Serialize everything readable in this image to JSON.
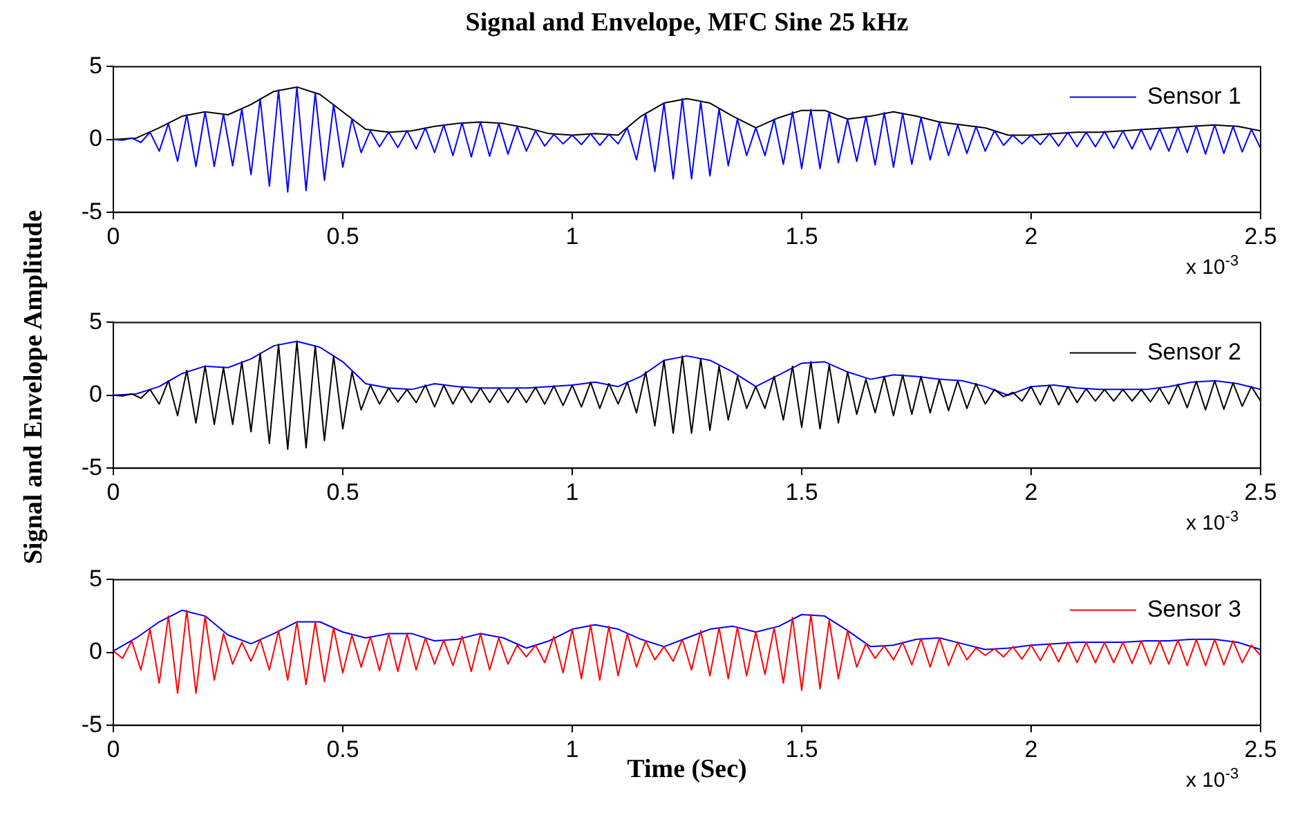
{
  "chart_data": [
    {
      "type": "line",
      "title": "Signal and Envelope, MFC Sine 25 kHz",
      "xlim": [
        0,
        2.5
      ],
      "xticks": [
        0,
        0.5,
        1,
        1.5,
        2,
        2.5
      ],
      "ylim": [
        -5,
        5
      ],
      "yticks": [
        -5,
        0,
        5
      ],
      "grid": false,
      "legend": "top right",
      "marker": "none",
      "annotations": [
        "x 10$^{-3}$"
      ],
      "x": [
        0,
        0.02,
        0.04,
        0.06,
        0.08,
        0.1,
        0.12,
        0.14,
        0.16,
        0.18,
        0.2,
        0.22,
        0.24,
        0.26,
        0.28,
        0.3,
        0.32,
        0.34,
        0.36,
        0.38,
        0.4,
        0.42,
        0.44,
        0.46,
        0.48,
        0.5,
        0.52,
        0.54,
        0.56,
        0.58,
        0.6,
        0.62,
        0.64,
        0.66,
        0.68,
        0.7,
        0.72,
        0.74,
        0.76,
        0.78,
        0.8,
        0.82,
        0.84,
        0.86,
        0.88,
        0.9,
        0.92,
        0.94,
        0.96,
        0.98,
        1,
        1.02,
        1.04,
        1.06,
        1.08,
        1.1,
        1.12,
        1.14,
        1.16,
        1.18,
        1.2,
        1.22,
        1.24,
        1.26,
        1.28,
        1.3,
        1.32,
        1.34,
        1.36,
        1.38,
        1.4,
        1.42,
        1.44,
        1.46,
        1.48,
        1.5,
        1.52,
        1.54,
        1.56,
        1.58,
        1.6,
        1.62,
        1.64,
        1.66,
        1.68,
        1.7,
        1.72,
        1.74,
        1.76,
        1.78,
        1.8,
        1.82,
        1.84,
        1.86,
        1.88,
        1.9,
        1.92,
        1.94,
        1.96,
        1.98,
        2,
        2.02,
        2.04,
        2.06,
        2.08,
        2.1,
        2.12,
        2.14,
        2.16,
        2.18,
        2.2,
        2.22,
        2.24,
        2.26,
        2.28,
        2.3,
        2.32,
        2.34,
        2.36,
        2.38,
        2.4,
        2.42,
        2.44,
        2.46,
        2.48,
        2.5
      ],
      "series": [
        {
          "name": "Sensor 1",
          "color": "#0000ff",
          "values": [
            0,
            -0.05,
            0.1,
            -0.2,
            0.5,
            -0.8,
            1.1,
            -1.5,
            1.7,
            -1.85,
            1.9,
            -1.85,
            1.75,
            -1.8,
            2.1,
            -2.4,
            2.8,
            -3.2,
            3.4,
            -3.6,
            3.6,
            -3.5,
            3.2,
            -2.8,
            2.4,
            -1.9,
            1.4,
            -0.9,
            0.6,
            -0.5,
            0.5,
            -0.55,
            0.6,
            -0.65,
            0.8,
            -0.9,
            1,
            -1.1,
            1.15,
            -1.2,
            1.2,
            -1.15,
            1.1,
            -1,
            0.9,
            -0.8,
            0.6,
            -0.45,
            0.35,
            -0.3,
            0.3,
            -0.35,
            0.4,
            -0.4,
            0.35,
            -0.3,
            0.8,
            -1.4,
            1.8,
            -2.2,
            2.5,
            -2.7,
            2.8,
            -2.7,
            2.6,
            -2.5,
            2.1,
            -1.8,
            1.4,
            -1.1,
            0.8,
            -1.1,
            1.4,
            -1.7,
            1.9,
            -2,
            2.05,
            -2,
            1.9,
            -1.6,
            1.4,
            -1.5,
            1.6,
            -1.75,
            1.85,
            -1.9,
            1.8,
            -1.7,
            1.5,
            -1.4,
            1.2,
            -1.1,
            1,
            -0.95,
            0.9,
            -0.8,
            0.6,
            -0.4,
            0.3,
            -0.3,
            0.3,
            -0.35,
            0.4,
            -0.45,
            0.5,
            -0.5,
            0.5,
            -0.5,
            0.55,
            -0.6,
            0.6,
            -0.65,
            0.7,
            -0.7,
            0.75,
            -0.8,
            0.85,
            -0.9,
            0.95,
            -1,
            1,
            -0.95,
            0.9,
            -0.85,
            0.7,
            -0.6
          ]
        },
        {
          "color": "#000000",
          "x": [
            0,
            0.05,
            0.1,
            0.15,
            0.2,
            0.25,
            0.3,
            0.35,
            0.4,
            0.45,
            0.5,
            0.55,
            0.6,
            0.65,
            0.7,
            0.75,
            0.8,
            0.85,
            0.9,
            0.95,
            1,
            1.05,
            1.1,
            1.15,
            1.2,
            1.25,
            1.3,
            1.35,
            1.4,
            1.45,
            1.5,
            1.55,
            1.6,
            1.65,
            1.7,
            1.75,
            1.8,
            1.85,
            1.9,
            1.95,
            2,
            2.05,
            2.1,
            2.15,
            2.2,
            2.25,
            2.3,
            2.35,
            2.4,
            2.45,
            2.5
          ],
          "values": [
            0,
            0.1,
            0.8,
            1.6,
            1.9,
            1.7,
            2.4,
            3.3,
            3.6,
            3.1,
            1.9,
            0.7,
            0.5,
            0.6,
            0.9,
            1.1,
            1.2,
            1.1,
            0.8,
            0.4,
            0.3,
            0.4,
            0.3,
            1.6,
            2.5,
            2.8,
            2.5,
            1.6,
            0.8,
            1.5,
            2,
            2,
            1.4,
            1.6,
            1.9,
            1.6,
            1.2,
            1,
            0.8,
            0.3,
            0.3,
            0.4,
            0.5,
            0.5,
            0.6,
            0.7,
            0.8,
            0.9,
            1,
            0.9,
            0.6
          ]
        }
      ]
    },
    {
      "type": "line",
      "ylabel": "Signal and Envelope Amplitude",
      "xlim": [
        0,
        2.5
      ],
      "xticks": [
        0,
        0.5,
        1,
        1.5,
        2,
        2.5
      ],
      "ylim": [
        -5,
        5
      ],
      "yticks": [
        -5,
        0,
        5
      ],
      "grid": false,
      "legend": "top right",
      "marker": "none",
      "annotations": [
        "x 10$^{-3}$"
      ],
      "x": [
        0,
        0.02,
        0.04,
        0.06,
        0.08,
        0.1,
        0.12,
        0.14,
        0.16,
        0.18,
        0.2,
        0.22,
        0.24,
        0.26,
        0.28,
        0.3,
        0.32,
        0.34,
        0.36,
        0.38,
        0.4,
        0.42,
        0.44,
        0.46,
        0.48,
        0.5,
        0.52,
        0.54,
        0.56,
        0.58,
        0.6,
        0.62,
        0.64,
        0.66,
        0.68,
        0.7,
        0.72,
        0.74,
        0.76,
        0.78,
        0.8,
        0.82,
        0.84,
        0.86,
        0.88,
        0.9,
        0.92,
        0.94,
        0.96,
        0.98,
        1,
        1.02,
        1.04,
        1.06,
        1.08,
        1.1,
        1.12,
        1.14,
        1.16,
        1.18,
        1.2,
        1.22,
        1.24,
        1.26,
        1.28,
        1.3,
        1.32,
        1.34,
        1.36,
        1.38,
        1.4,
        1.42,
        1.44,
        1.46,
        1.48,
        1.5,
        1.52,
        1.54,
        1.56,
        1.58,
        1.6,
        1.62,
        1.64,
        1.66,
        1.68,
        1.7,
        1.72,
        1.74,
        1.76,
        1.78,
        1.8,
        1.82,
        1.84,
        1.86,
        1.88,
        1.9,
        1.92,
        1.94,
        1.96,
        1.98,
        2,
        2.02,
        2.04,
        2.06,
        2.08,
        2.1,
        2.12,
        2.14,
        2.16,
        2.18,
        2.2,
        2.22,
        2.24,
        2.26,
        2.28,
        2.3,
        2.32,
        2.34,
        2.36,
        2.38,
        2.4,
        2.42,
        2.44,
        2.46,
        2.48,
        2.5
      ],
      "series": [
        {
          "name": "Sensor 2",
          "color": "#000000",
          "values": [
            0,
            -0.05,
            0.1,
            -0.2,
            0.4,
            -0.6,
            1,
            -1.4,
            1.7,
            -1.9,
            2,
            -2,
            1.9,
            -2,
            2.3,
            -2.5,
            2.9,
            -3.3,
            3.5,
            -3.7,
            3.7,
            -3.6,
            3.4,
            -3.1,
            2.7,
            -2.3,
            1.6,
            -1,
            0.7,
            -0.6,
            0.5,
            -0.45,
            0.4,
            -0.5,
            0.7,
            -0.8,
            0.7,
            -0.6,
            0.55,
            -0.5,
            0.5,
            -0.5,
            0.5,
            -0.5,
            0.5,
            -0.5,
            0.55,
            -0.6,
            0.65,
            -0.7,
            0.7,
            -0.8,
            0.9,
            -0.9,
            0.8,
            -0.6,
            0.9,
            -1.2,
            1.6,
            -2.1,
            2.4,
            -2.6,
            2.7,
            -2.6,
            2.5,
            -2.4,
            2,
            -1.7,
            1.3,
            -0.9,
            0.6,
            -0.9,
            1.3,
            -1.7,
            2,
            -2.2,
            2.3,
            -2.3,
            2.1,
            -1.9,
            1.6,
            -1.3,
            1.1,
            -1.2,
            1.3,
            -1.4,
            1.4,
            -1.3,
            1.3,
            -1.2,
            1.1,
            -1.05,
            1,
            -0.9,
            0.8,
            -0.6,
            0.4,
            -0.1,
            0.2,
            -0.4,
            0.6,
            -0.65,
            0.7,
            -0.65,
            0.6,
            -0.5,
            0.45,
            -0.4,
            0.4,
            -0.4,
            0.4,
            -0.4,
            0.4,
            -0.45,
            0.5,
            -0.6,
            0.75,
            -0.85,
            0.95,
            -1,
            1,
            -0.95,
            0.85,
            -0.75,
            0.6,
            -0.4
          ]
        },
        {
          "color": "#0000ff",
          "x": [
            0,
            0.05,
            0.1,
            0.15,
            0.2,
            0.25,
            0.3,
            0.35,
            0.4,
            0.45,
            0.5,
            0.55,
            0.6,
            0.65,
            0.7,
            0.75,
            0.8,
            0.85,
            0.9,
            0.95,
            1,
            1.05,
            1.1,
            1.15,
            1.2,
            1.25,
            1.3,
            1.35,
            1.4,
            1.45,
            1.5,
            1.55,
            1.6,
            1.65,
            1.7,
            1.75,
            1.8,
            1.85,
            1.9,
            1.95,
            2,
            2.05,
            2.1,
            2.15,
            2.2,
            2.25,
            2.3,
            2.35,
            2.4,
            2.45,
            2.5
          ],
          "values": [
            0,
            0.1,
            0.6,
            1.5,
            2,
            1.9,
            2.5,
            3.4,
            3.7,
            3.3,
            2.3,
            0.8,
            0.5,
            0.4,
            0.8,
            0.6,
            0.5,
            0.5,
            0.5,
            0.6,
            0.7,
            0.9,
            0.6,
            1.3,
            2.4,
            2.7,
            2.4,
            1.6,
            0.6,
            1.4,
            2.2,
            2.3,
            1.6,
            1.1,
            1.4,
            1.3,
            1.1,
            1,
            0.6,
            0,
            0.6,
            0.7,
            0.5,
            0.4,
            0.4,
            0.4,
            0.6,
            0.9,
            1,
            0.8,
            0.4
          ]
        }
      ]
    },
    {
      "type": "line",
      "xlabel": "Time (Sec)",
      "xlim": [
        0,
        2.5
      ],
      "xticks": [
        0,
        0.5,
        1,
        1.5,
        2,
        2.5
      ],
      "ylim": [
        -5,
        5
      ],
      "yticks": [
        -5,
        0,
        5
      ],
      "grid": false,
      "legend": "top right",
      "marker": "none",
      "annotations": [
        "x 10$^{-3}$"
      ],
      "x": [
        0,
        0.02,
        0.04,
        0.06,
        0.08,
        0.1,
        0.12,
        0.14,
        0.16,
        0.18,
        0.2,
        0.22,
        0.24,
        0.26,
        0.28,
        0.3,
        0.32,
        0.34,
        0.36,
        0.38,
        0.4,
        0.42,
        0.44,
        0.46,
        0.48,
        0.5,
        0.52,
        0.54,
        0.56,
        0.58,
        0.6,
        0.62,
        0.64,
        0.66,
        0.68,
        0.7,
        0.72,
        0.74,
        0.76,
        0.78,
        0.8,
        0.82,
        0.84,
        0.86,
        0.88,
        0.9,
        0.92,
        0.94,
        0.96,
        0.98,
        1,
        1.02,
        1.04,
        1.06,
        1.08,
        1.1,
        1.12,
        1.14,
        1.16,
        1.18,
        1.2,
        1.22,
        1.24,
        1.26,
        1.28,
        1.3,
        1.32,
        1.34,
        1.36,
        1.38,
        1.4,
        1.42,
        1.44,
        1.46,
        1.48,
        1.5,
        1.52,
        1.54,
        1.56,
        1.58,
        1.6,
        1.62,
        1.64,
        1.66,
        1.68,
        1.7,
        1.72,
        1.74,
        1.76,
        1.78,
        1.8,
        1.82,
        1.84,
        1.86,
        1.88,
        1.9,
        1.92,
        1.94,
        1.96,
        1.98,
        2,
        2.02,
        2.04,
        2.06,
        2.08,
        2.1,
        2.12,
        2.14,
        2.16,
        2.18,
        2.2,
        2.22,
        2.24,
        2.26,
        2.28,
        2.3,
        2.32,
        2.34,
        2.36,
        2.38,
        2.4,
        2.42,
        2.44,
        2.46,
        2.48,
        2.5
      ],
      "series": [
        {
          "name": "Sensor 3",
          "color": "#ff0000",
          "values": [
            0.1,
            -0.4,
            0.8,
            -1.2,
            1.6,
            -2.1,
            2.5,
            -2.8,
            2.9,
            -2.8,
            2.5,
            -1.9,
            1.3,
            -0.8,
            0.7,
            -0.6,
            0.9,
            -1.2,
            1.5,
            -1.9,
            2.1,
            -2.2,
            2.1,
            -2,
            1.7,
            -1.4,
            1.2,
            -1,
            1.1,
            -1.25,
            1.3,
            -1.3,
            1.3,
            -1.2,
            1,
            -0.8,
            0.85,
            -0.9,
            1.1,
            -1.3,
            1.3,
            -1.2,
            1,
            -0.8,
            0.5,
            -0.3,
            0.5,
            -0.7,
            1.1,
            -1.4,
            1.6,
            -1.8,
            1.9,
            -1.9,
            1.8,
            -1.6,
            1.3,
            -1,
            0.8,
            -0.5,
            0.4,
            -0.6,
            0.9,
            -1.2,
            1.5,
            -1.6,
            1.7,
            -1.8,
            1.75,
            -1.6,
            1.4,
            -1.5,
            1.7,
            -2.1,
            2.4,
            -2.6,
            2.6,
            -2.5,
            2.2,
            -1.8,
            1.5,
            -1,
            0.6,
            -0.4,
            0.45,
            -0.5,
            0.7,
            -0.85,
            0.95,
            -1,
            1,
            -0.9,
            0.7,
            -0.5,
            0.3,
            -0.2,
            0.25,
            -0.3,
            0.4,
            -0.45,
            0.5,
            -0.55,
            0.6,
            -0.65,
            0.7,
            -0.7,
            0.7,
            -0.7,
            0.7,
            -0.7,
            0.7,
            -0.75,
            0.8,
            -0.8,
            0.8,
            -0.8,
            0.85,
            -0.9,
            0.9,
            -0.9,
            0.9,
            -0.85,
            0.8,
            -0.7,
            0.5,
            -0.2
          ]
        },
        {
          "color": "#0000ff",
          "x": [
            0,
            0.05,
            0.1,
            0.15,
            0.2,
            0.25,
            0.3,
            0.35,
            0.4,
            0.45,
            0.5,
            0.55,
            0.6,
            0.65,
            0.7,
            0.75,
            0.8,
            0.85,
            0.9,
            0.95,
            1,
            1.05,
            1.1,
            1.15,
            1.2,
            1.25,
            1.3,
            1.35,
            1.4,
            1.45,
            1.5,
            1.55,
            1.6,
            1.65,
            1.7,
            1.75,
            1.8,
            1.85,
            1.9,
            1.95,
            2,
            2.05,
            2.1,
            2.15,
            2.2,
            2.25,
            2.3,
            2.35,
            2.4,
            2.45,
            2.5
          ],
          "values": [
            0.1,
            1,
            2.1,
            2.9,
            2.5,
            1.2,
            0.6,
            1.3,
            2.1,
            2.1,
            1.4,
            1,
            1.3,
            1.3,
            0.8,
            0.9,
            1.3,
            1,
            0.3,
            0.8,
            1.6,
            1.9,
            1.6,
            0.9,
            0.4,
            1,
            1.6,
            1.8,
            1.4,
            1.8,
            2.6,
            2.5,
            1.5,
            0.4,
            0.5,
            0.9,
            1,
            0.6,
            0.2,
            0.3,
            0.5,
            0.6,
            0.7,
            0.7,
            0.7,
            0.8,
            0.8,
            0.9,
            0.9,
            0.7,
            0.2
          ]
        }
      ]
    }
  ]
}
